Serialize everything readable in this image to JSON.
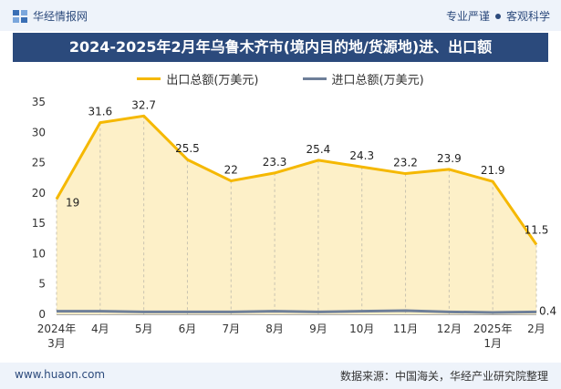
{
  "header": {
    "brand": "华经情报网",
    "tag1": "专业严谨",
    "tag2": "客观科学"
  },
  "title": "2024-2025年2月年乌鲁木齐市(境内目的地/货源地)进、出口额",
  "colors": {
    "export": "#f5b800",
    "import": "#6e7f99",
    "fill": "#fdf0c8",
    "title_bg": "#2b4a7c"
  },
  "footer": {
    "website": "www.huaon.com",
    "source": "数据来源：中国海关，华经产业研究院整理"
  },
  "chart_data": {
    "type": "area",
    "categories": [
      "2024年\n3月",
      "4月",
      "5月",
      "6月",
      "7月",
      "8月",
      "9月",
      "10月",
      "11月",
      "12月",
      "2025年\n1月",
      "2月"
    ],
    "series": [
      {
        "name": "出口总额(万美元)",
        "values": [
          19,
          31.6,
          32.7,
          25.5,
          22,
          23.3,
          25.4,
          24.3,
          23.2,
          23.9,
          21.9,
          11.5
        ]
      },
      {
        "name": "进口总额(万美元)",
        "values": [
          0.5,
          0.5,
          0.4,
          0.4,
          0.4,
          0.5,
          0.4,
          0.5,
          0.6,
          0.4,
          0.3,
          0.4
        ]
      }
    ],
    "labels_export": [
      "19",
      "31.6",
      "32.7",
      "25.5",
      "22",
      "23.3",
      "25.4",
      "24.3",
      "23.2",
      "23.9",
      "21.9",
      "11.5"
    ],
    "label_import_last": "0.4",
    "yticks": [
      "0",
      "5",
      "10",
      "15",
      "20",
      "25",
      "30",
      "35"
    ],
    "ylim": [
      0,
      35
    ],
    "title": "2024-2025年2月年乌鲁木齐市(境内目的地/货源地)进、出口额"
  }
}
